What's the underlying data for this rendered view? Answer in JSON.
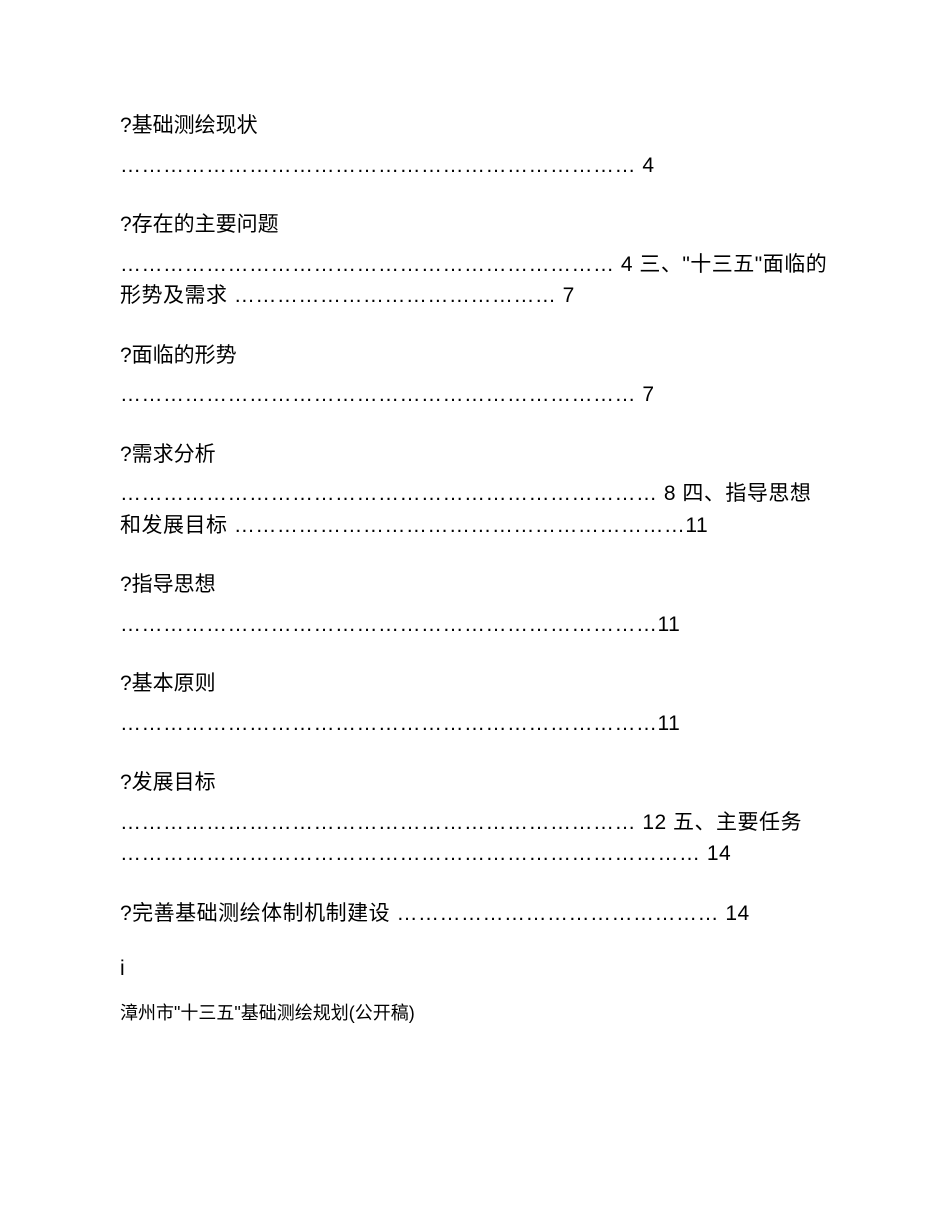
{
  "toc": {
    "entries": [
      {
        "title": "?基础测绘现状",
        "dots_and_tail": "……………………………………………………………… 4"
      },
      {
        "title": "?存在的主要问题",
        "dots_and_tail": "…………………………………………………………… 4 三、\"十三五\"面临的形势及需求 ……………………………………… 7"
      },
      {
        "title": "?面临的形势",
        "dots_and_tail": "……………………………………………………………… 7"
      },
      {
        "title": "?需求分析",
        "dots_and_tail": "………………………………………………………………… 8 四、指导思想和发展目标 ………………………………………………………11"
      },
      {
        "title": "?指导思想",
        "dots_and_tail": "…………………………………………………………………11"
      },
      {
        "title": "?基本原则",
        "dots_and_tail": "…………………………………………………………………11"
      },
      {
        "title": "?发展目标",
        "dots_and_tail": "……………………………………………………………… 12 五、主要任务 ……………………………………………………………………… 14"
      },
      {
        "title": "?完善基础测绘体制机制建设 ……………………………………… 14",
        "dots_and_tail": ""
      }
    ]
  },
  "page_marker": "i",
  "footer": "漳州市\"十三五\"基础测绘规划(公开稿)",
  "colors": {
    "text": "#000000",
    "background": "#ffffff"
  },
  "typography": {
    "body_fontsize": 21,
    "footer_fontsize": 18,
    "font_family": "Microsoft YaHei, SimSun, sans-serif"
  }
}
